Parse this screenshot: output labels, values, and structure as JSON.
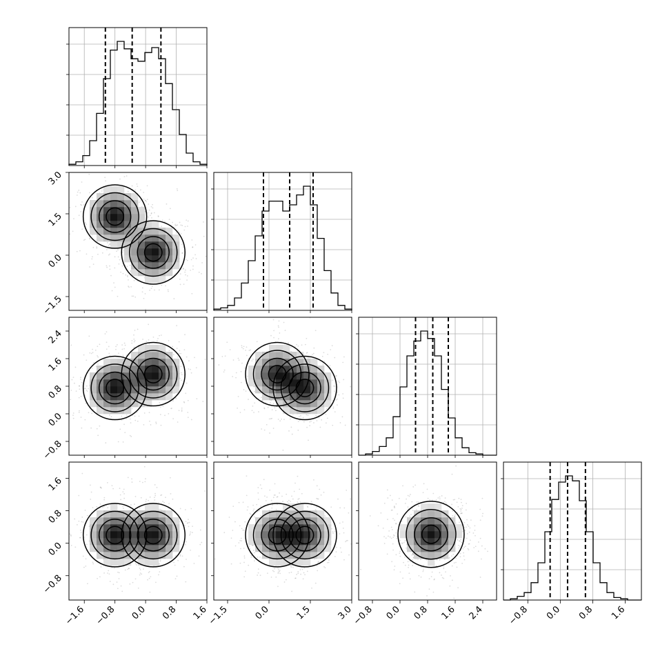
{
  "chart_data": {
    "type": "corner",
    "parameters": [
      {
        "index": 0,
        "range": [
          -2.0,
          1.6
        ],
        "ticks": [
          -1.6,
          -0.8,
          0.0,
          0.8,
          1.6
        ],
        "tick_labels": [
          "−1.6",
          "−0.8",
          "0.0",
          "0.8",
          "1.6"
        ]
      },
      {
        "index": 1,
        "range": [
          -2.0,
          3.0
        ],
        "ticks": [
          -1.5,
          0.0,
          1.5,
          3.0
        ],
        "tick_labels": [
          "−1.5",
          "0.0",
          "1.5",
          "3.0"
        ]
      },
      {
        "index": 2,
        "range": [
          -1.2,
          2.8
        ],
        "ticks": [
          -0.8,
          0.0,
          0.8,
          1.6,
          2.4
        ],
        "tick_labels": [
          "−0.8",
          "0.0",
          "0.8",
          "1.6",
          "2.4"
        ]
      },
      {
        "index": 3,
        "range": [
          -1.4,
          2.0
        ],
        "ticks": [
          -0.8,
          0.0,
          0.8,
          1.6
        ],
        "tick_labels": [
          "−0.8",
          "0.0",
          "0.8",
          "1.6"
        ]
      }
    ],
    "histograms": [
      {
        "param": 0,
        "bin_edges_start": -2.0,
        "bin_width": 0.18,
        "counts": [
          1,
          3,
          8,
          20,
          42,
          70,
          93,
          100,
          94,
          86,
          84,
          91,
          95,
          86,
          66,
          45,
          25,
          10,
          3,
          1
        ],
        "quantiles": [
          -1.05,
          -0.35,
          0.4
        ]
      },
      {
        "param": 1,
        "bin_edges_start": -2.0,
        "bin_width": 0.25,
        "counts": [
          1,
          2,
          4,
          10,
          22,
          40,
          60,
          80,
          88,
          88,
          80,
          85,
          93,
          100,
          85,
          58,
          32,
          14,
          4,
          1
        ],
        "quantiles": [
          -0.2,
          0.75,
          1.6
        ]
      },
      {
        "param": 2,
        "bin_edges_start": -1.2,
        "bin_width": 0.2,
        "counts": [
          0,
          1,
          3,
          7,
          14,
          31,
          55,
          80,
          92,
          100,
          94,
          80,
          53,
          30,
          14,
          6,
          2,
          1,
          0,
          0
        ],
        "quantiles": [
          0.45,
          0.95,
          1.4
        ]
      },
      {
        "param": 3,
        "bin_edges_start": -1.4,
        "bin_width": 0.17,
        "counts": [
          0,
          1,
          3,
          6,
          14,
          30,
          55,
          81,
          95,
          100,
          96,
          80,
          55,
          30,
          14,
          6,
          2,
          1,
          0,
          0
        ],
        "quantiles": [
          -0.25,
          0.18,
          0.62
        ]
      }
    ],
    "joint_2d": [
      {
        "x_param": 0,
        "y_param": 1,
        "density": "bimodal",
        "modes": [
          [
            -0.8,
            1.4
          ],
          [
            0.2,
            0.1
          ]
        ]
      },
      {
        "x_param": 0,
        "y_param": 2,
        "density": "bimodal",
        "modes": [
          [
            -0.8,
            0.75
          ],
          [
            0.2,
            1.15
          ]
        ]
      },
      {
        "x_param": 1,
        "y_param": 2,
        "density": "bimodal",
        "modes": [
          [
            0.3,
            1.15
          ],
          [
            1.3,
            0.75
          ]
        ]
      },
      {
        "x_param": 0,
        "y_param": 3,
        "density": "bimodal",
        "modes": [
          [
            -0.8,
            0.2
          ],
          [
            0.2,
            0.2
          ]
        ]
      },
      {
        "x_param": 1,
        "y_param": 3,
        "density": "bimodal",
        "modes": [
          [
            0.3,
            0.2
          ],
          [
            1.3,
            0.2
          ]
        ]
      },
      {
        "x_param": 2,
        "y_param": 3,
        "density": "unimodal",
        "modes": [
          [
            0.9,
            0.22
          ]
        ]
      }
    ],
    "grid": true,
    "legend": "none"
  }
}
